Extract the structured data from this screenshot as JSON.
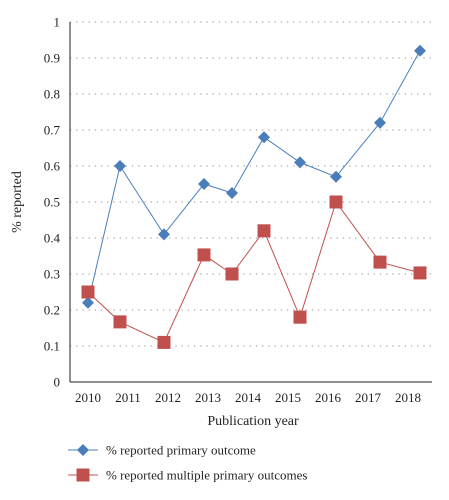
{
  "chart_data": {
    "type": "line",
    "xlabel": "Publication year",
    "ylabel": "% reported",
    "categories": [
      "2010",
      "2011",
      "2012",
      "2013",
      "2014",
      "2015",
      "2016",
      "2017",
      "2018"
    ],
    "ylim": [
      0,
      1
    ],
    "yticks": [
      "0",
      "0.1",
      "0.2",
      "0.3",
      "0.4",
      "0.5",
      "0.6",
      "0.7",
      "0.8",
      "0.9",
      "1"
    ],
    "grid": "dotted horizontal",
    "legend_position": "bottom",
    "series": [
      {
        "name": "% reported primary outcome",
        "color": "#4a7ebb",
        "marker": "diamond",
        "points": [
          {
            "x": 2010.0,
            "y": 0.22
          },
          {
            "x": 2010.8,
            "y": 0.6
          },
          {
            "x": 2011.9,
            "y": 0.41
          },
          {
            "x": 2012.9,
            "y": 0.55
          },
          {
            "x": 2013.6,
            "y": 0.525
          },
          {
            "x": 2014.4,
            "y": 0.68
          },
          {
            "x": 2015.3,
            "y": 0.61
          },
          {
            "x": 2016.2,
            "y": 0.57
          },
          {
            "x": 2017.3,
            "y": 0.72
          },
          {
            "x": 2018.3,
            "y": 0.92
          }
        ]
      },
      {
        "name": "% reported multiple primary outcomes",
        "color": "#c0504d",
        "marker": "square",
        "points": [
          {
            "x": 2010.0,
            "y": 0.25
          },
          {
            "x": 2010.8,
            "y": 0.167
          },
          {
            "x": 2011.9,
            "y": 0.11
          },
          {
            "x": 2012.9,
            "y": 0.353
          },
          {
            "x": 2013.6,
            "y": 0.3
          },
          {
            "x": 2014.4,
            "y": 0.42
          },
          {
            "x": 2015.3,
            "y": 0.18
          },
          {
            "x": 2016.2,
            "y": 0.5
          },
          {
            "x": 2017.3,
            "y": 0.333
          },
          {
            "x": 2018.3,
            "y": 0.303
          }
        ]
      }
    ]
  }
}
